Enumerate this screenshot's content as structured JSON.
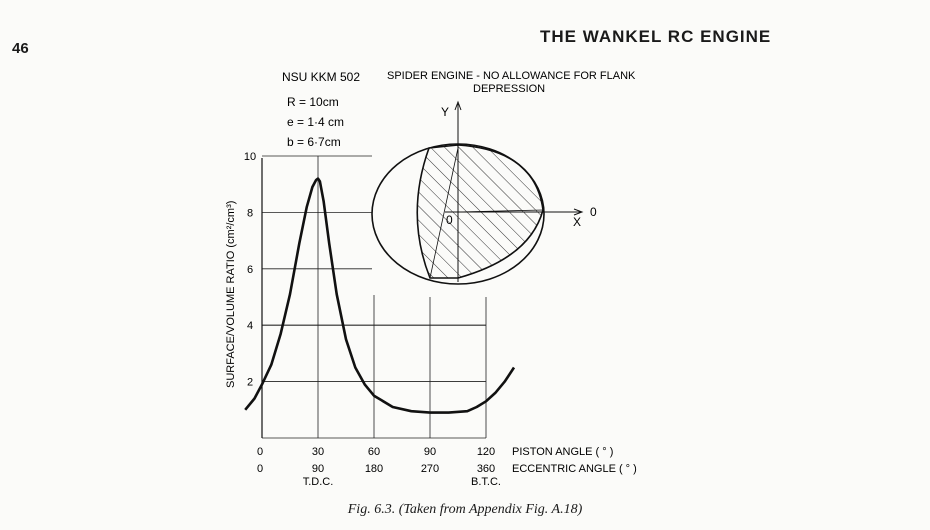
{
  "page": {
    "number": "46",
    "running_head": "THE WANKEL RC ENGINE",
    "caption": "Fig. 6.3. (Taken from Appendix Fig. A.18)"
  },
  "figure": {
    "model": "NSU KKM 502",
    "note_line1": "SPIDER ENGINE - NO ALLOWANCE FOR FLANK",
    "note_line2": "DEPRESSION",
    "params": [
      "R = 10cm",
      "e = 1·4 cm",
      "b = 6·7cm"
    ],
    "inset": {
      "y_label": "Y",
      "x_label": "X",
      "origin_label": "0",
      "zero_label": "0"
    }
  },
  "chart_data": {
    "type": "line",
    "ylabel": "SURFACE/VOLUME RATIO (cm²/cm³)",
    "ylim": [
      0,
      10
    ],
    "xlim": [
      -9,
      135
    ],
    "yticks": [
      "2",
      "4",
      "6",
      "8",
      "10"
    ],
    "ytick_values": [
      2,
      4,
      6,
      8,
      10
    ],
    "xaxis_piston": {
      "label": "PISTON ANGLE ( ° )",
      "zero_label": "0",
      "values": [
        30,
        60,
        90,
        120
      ],
      "labels": [
        "30",
        "60",
        "90",
        "120"
      ]
    },
    "xaxis_eccentric": {
      "label": "ECCENTRIC ANGLE ( ° )",
      "zero_label": "0",
      "values": [
        30,
        60,
        90,
        120
      ],
      "labels": [
        "90",
        "180",
        "270",
        "360"
      ]
    },
    "annotations": [
      {
        "x": 30,
        "text": "T.D.C."
      },
      {
        "x": 120,
        "text": "B.T.C."
      }
    ],
    "grid": true,
    "series": [
      {
        "x": [
          -9,
          -4,
          0,
          5,
          10,
          15,
          20,
          24,
          27,
          29,
          30,
          31,
          33,
          36,
          40,
          45,
          50,
          55,
          60,
          70,
          80,
          90,
          100,
          110,
          115,
          120,
          125,
          130,
          135
        ],
        "y": [
          1.0,
          1.4,
          1.9,
          2.6,
          3.7,
          5.1,
          6.9,
          8.2,
          8.9,
          9.15,
          9.2,
          9.1,
          8.4,
          6.9,
          5.1,
          3.5,
          2.5,
          1.9,
          1.5,
          1.1,
          0.95,
          0.9,
          0.9,
          0.95,
          1.1,
          1.3,
          1.6,
          2.0,
          2.5
        ]
      }
    ]
  }
}
